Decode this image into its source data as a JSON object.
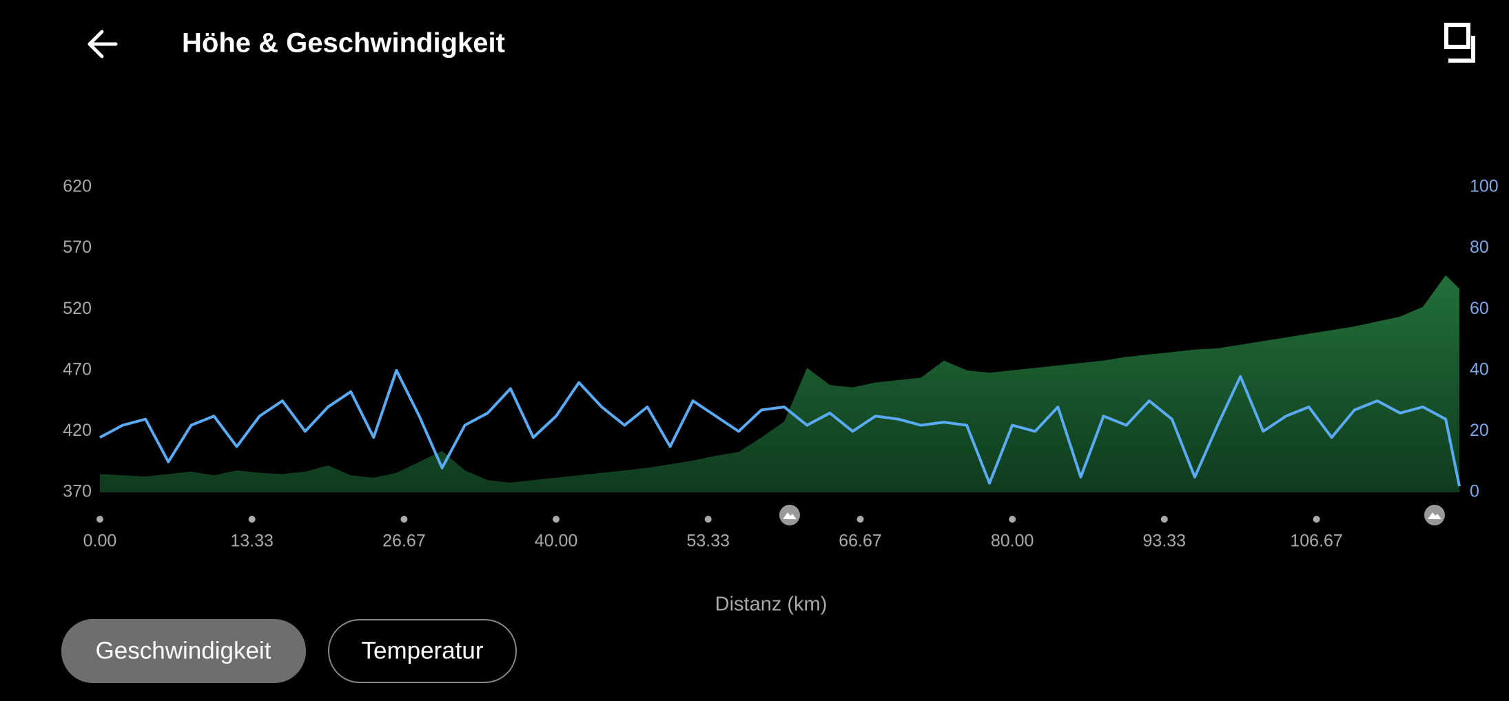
{
  "header": {
    "title": "Höhe & Geschwindigkeit"
  },
  "chart_data": {
    "type": "area",
    "xlabel": "Distanz (km)",
    "x": [
      0,
      2,
      4,
      6,
      8,
      10,
      12,
      14,
      16,
      18,
      20,
      22,
      24,
      26,
      28,
      30,
      32,
      34,
      36,
      38,
      40,
      42,
      44,
      46,
      48,
      50,
      52,
      54,
      56,
      58,
      60,
      62,
      64,
      66,
      68,
      70,
      72,
      74,
      76,
      78,
      80,
      82,
      84,
      86,
      88,
      90,
      92,
      94,
      96,
      98,
      100,
      102,
      104,
      106,
      108,
      110,
      112,
      114,
      116,
      118,
      119.2
    ],
    "xlim": [
      0,
      119.2
    ],
    "xticks": [
      {
        "value": 0,
        "label": "0.00"
      },
      13.33,
      26.67,
      {
        "value": 40,
        "label": "40.00"
      },
      53.33,
      66.67,
      {
        "value": 80,
        "label": "80.00"
      },
      93.33,
      106.67
    ],
    "ylim": [
      370,
      620
    ],
    "yticks": [
      370,
      420,
      470,
      520,
      570,
      620
    ],
    "y2lim": [
      0,
      100
    ],
    "y2ticks": [
      0,
      20,
      40,
      60,
      80,
      100
    ],
    "series": [
      {
        "type": "area",
        "color": "#1d6a34",
        "values": [
          385,
          384,
          383,
          385,
          387,
          384,
          388,
          386,
          385,
          387,
          392,
          384,
          382,
          386,
          395,
          404,
          388,
          380,
          378,
          380,
          382,
          384,
          386,
          388,
          390,
          393,
          396,
          400,
          403,
          415,
          428,
          472,
          458,
          456,
          460,
          462,
          464,
          478,
          470,
          468,
          470,
          472,
          474,
          476,
          478,
          481,
          483,
          485,
          487,
          488,
          491,
          494,
          497,
          500,
          503,
          506,
          510,
          514,
          522,
          548,
          537
        ]
      },
      {
        "type": "line",
        "axis": "y2",
        "color": "#5aaaf5",
        "values": [
          18,
          22,
          24,
          10,
          22,
          25,
          15,
          25,
          30,
          20,
          28,
          33,
          18,
          40,
          25,
          8,
          22,
          26,
          34,
          18,
          25,
          36,
          28,
          22,
          28,
          15,
          30,
          25,
          20,
          27,
          28,
          22,
          26,
          20,
          25,
          24,
          22,
          23,
          22,
          3,
          22,
          20,
          28,
          5,
          25,
          22,
          30,
          24,
          5,
          22,
          38,
          20,
          25,
          28,
          18,
          27,
          30,
          26,
          28,
          24,
          2
        ]
      }
    ]
  },
  "buttons": [
    "Geschwindigkeit",
    "Temperatur"
  ]
}
